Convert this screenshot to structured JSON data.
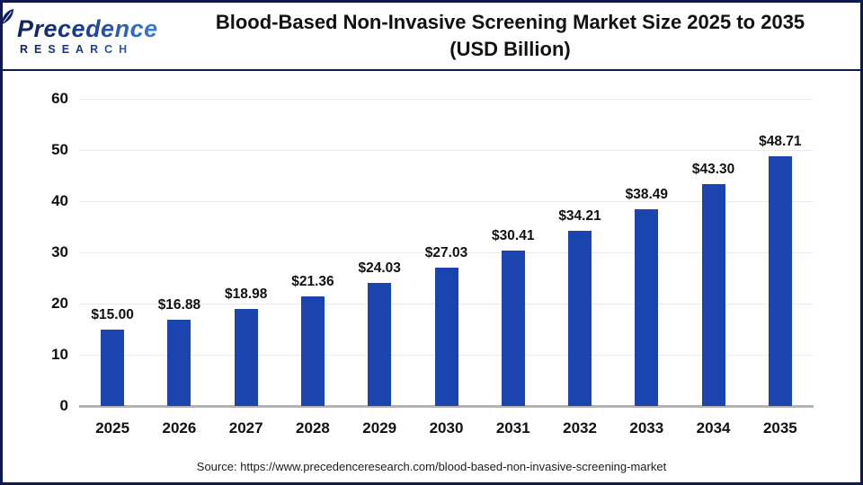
{
  "header": {
    "logo": {
      "brand": "Precedence",
      "subtitle": "RESEARCH"
    },
    "title_line1": "Blood-Based Non-Invasive Screening Market Size 2025 to 2035",
    "title_line2": "(USD Billion)"
  },
  "chart_data": {
    "type": "bar",
    "title": "Blood-Based Non-Invasive Screening Market Size 2025 to 2035 (USD Billion)",
    "categories": [
      "2025",
      "2026",
      "2027",
      "2028",
      "2029",
      "2030",
      "2031",
      "2032",
      "2033",
      "2034",
      "2035"
    ],
    "values": [
      15.0,
      16.88,
      18.98,
      21.36,
      24.03,
      27.03,
      30.41,
      34.21,
      38.49,
      43.3,
      48.71
    ],
    "value_labels": [
      "$15.00",
      "$16.88",
      "$18.98",
      "$21.36",
      "$24.03",
      "$27.03",
      "$30.41",
      "$34.21",
      "$38.49",
      "$43.30",
      "$48.71"
    ],
    "xlabel": "",
    "ylabel": "",
    "ylim": [
      0,
      60
    ],
    "yticks": [
      0,
      10,
      20,
      30,
      40,
      50,
      60
    ],
    "grid": true,
    "legend_position": "none",
    "bar_color": "#1b44ae"
  },
  "footer": {
    "source": "Source: https://www.precedenceresearch.com/blood-based-non-invasive-screening-market"
  },
  "colors": {
    "frame_border": "#10194d",
    "bar": "#1b44ae",
    "gridline": "#e9e9e9",
    "axis_line": "#b3b3b3",
    "text": "#111111",
    "logo_dark": "#13215e",
    "logo_light": "#3d7fd2"
  }
}
